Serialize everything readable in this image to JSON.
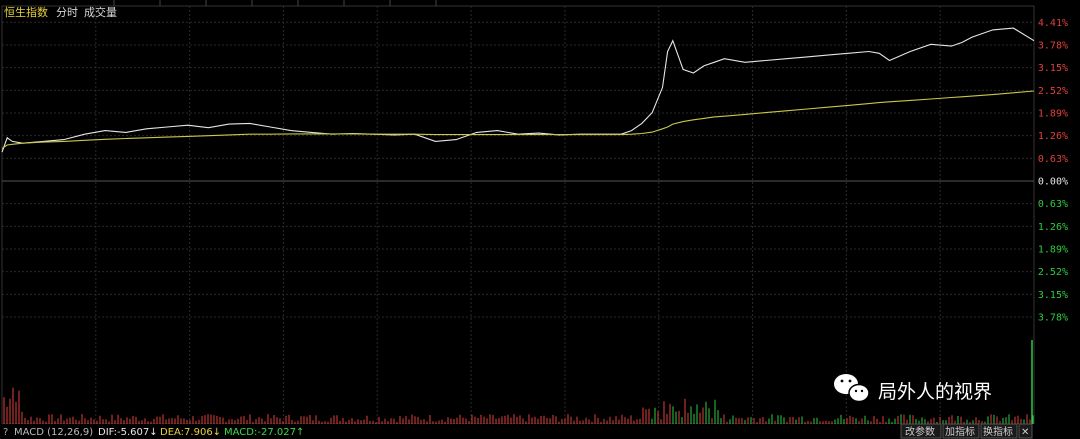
{
  "tabs": {
    "index_name": "恒生指数",
    "intraday": "分时",
    "volume": "成交量"
  },
  "macd_bar": {
    "help": "?",
    "name": "MACD (12,26,9)",
    "dif": "DIF:-5.607↓",
    "dea": "DEA:7.906↓",
    "macd": "MACD:-27.027↑"
  },
  "buttons": {
    "change_params": "改参数",
    "add_indicator": "加指标",
    "switch_indicator": "换指标",
    "close": "✕"
  },
  "watermark": "局外人的视界",
  "colors": {
    "background": "#000000",
    "grid": "#2a2a2a",
    "price_line": "#e6e6e6",
    "avg_line": "#c8c84a",
    "up": "#e0403a",
    "down": "#2ecc40",
    "zero": "#e6e6e6"
  },
  "chart_data": {
    "type": "line",
    "y_tick_labels": [
      "4.41%",
      "3.78%",
      "3.15%",
      "2.52%",
      "1.89%",
      "1.26%",
      "0.63%",
      "0.00%",
      "0.63%",
      "1.26%",
      "1.89%",
      "2.52%",
      "3.15%",
      "3.78%"
    ],
    "y_tick_values": [
      4.41,
      3.78,
      3.15,
      2.52,
      1.89,
      1.26,
      0.63,
      0.0,
      -0.63,
      -1.26,
      -1.89,
      -2.52,
      -3.15,
      -3.78
    ],
    "ylim": [
      -4.41,
      4.41
    ],
    "grid": true,
    "x": [
      0,
      0.5,
      1,
      2,
      4,
      6,
      8,
      10,
      12,
      14,
      16,
      18,
      20,
      22,
      24,
      26,
      28,
      30,
      32,
      34,
      36,
      38,
      40,
      42,
      44,
      46,
      48,
      50,
      52,
      54,
      56,
      58,
      60,
      61,
      62,
      63,
      64,
      64.5,
      65,
      66,
      67,
      68,
      69,
      70,
      72,
      74,
      76,
      78,
      80,
      82,
      84,
      85,
      86,
      88,
      90,
      92,
      93,
      94,
      96,
      98,
      100
    ],
    "series": [
      {
        "values": [
          0.8,
          1.2,
          1.1,
          1.05,
          1.1,
          1.15,
          1.3,
          1.4,
          1.35,
          1.45,
          1.5,
          1.55,
          1.48,
          1.58,
          1.6,
          1.5,
          1.4,
          1.35,
          1.3,
          1.32,
          1.3,
          1.28,
          1.3,
          1.1,
          1.15,
          1.35,
          1.4,
          1.3,
          1.33,
          1.28,
          1.3,
          1.3,
          1.3,
          1.4,
          1.6,
          1.9,
          2.6,
          3.6,
          3.9,
          3.1,
          3.0,
          3.2,
          3.3,
          3.4,
          3.3,
          3.35,
          3.4,
          3.45,
          3.5,
          3.55,
          3.6,
          3.55,
          3.35,
          3.6,
          3.8,
          3.75,
          3.85,
          4.0,
          4.2,
          4.25,
          3.9
        ]
      },
      {
        "values": [
          0.9,
          1.0,
          1.02,
          1.05,
          1.08,
          1.1,
          1.13,
          1.16,
          1.18,
          1.2,
          1.22,
          1.24,
          1.26,
          1.28,
          1.3,
          1.3,
          1.31,
          1.31,
          1.31,
          1.31,
          1.3,
          1.3,
          1.3,
          1.29,
          1.29,
          1.29,
          1.29,
          1.29,
          1.29,
          1.29,
          1.29,
          1.29,
          1.29,
          1.3,
          1.32,
          1.36,
          1.45,
          1.5,
          1.58,
          1.65,
          1.7,
          1.74,
          1.78,
          1.8,
          1.85,
          1.9,
          1.95,
          2.0,
          2.05,
          2.1,
          2.15,
          2.18,
          2.2,
          2.24,
          2.28,
          2.32,
          2.34,
          2.36,
          2.4,
          2.45,
          2.5
        ]
      }
    ]
  }
}
